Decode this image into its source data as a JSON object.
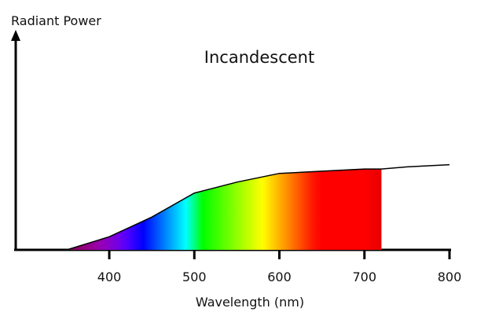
{
  "chart_data": {
    "type": "area",
    "title": "Incandescent",
    "ylabel": "Radiant Power",
    "xlabel": "Wavelength (nm)",
    "x": [
      350,
      400,
      450,
      500,
      550,
      600,
      650,
      700,
      720,
      750,
      800
    ],
    "values": [
      0,
      6,
      15,
      26,
      31,
      35,
      36,
      37,
      37,
      38,
      39
    ],
    "xlim": [
      290,
      800
    ],
    "xticks": [
      400,
      500,
      600,
      700,
      800
    ],
    "ylim": [
      0,
      100
    ],
    "fill_xlim": [
      350,
      720
    ],
    "color": "#000000"
  }
}
